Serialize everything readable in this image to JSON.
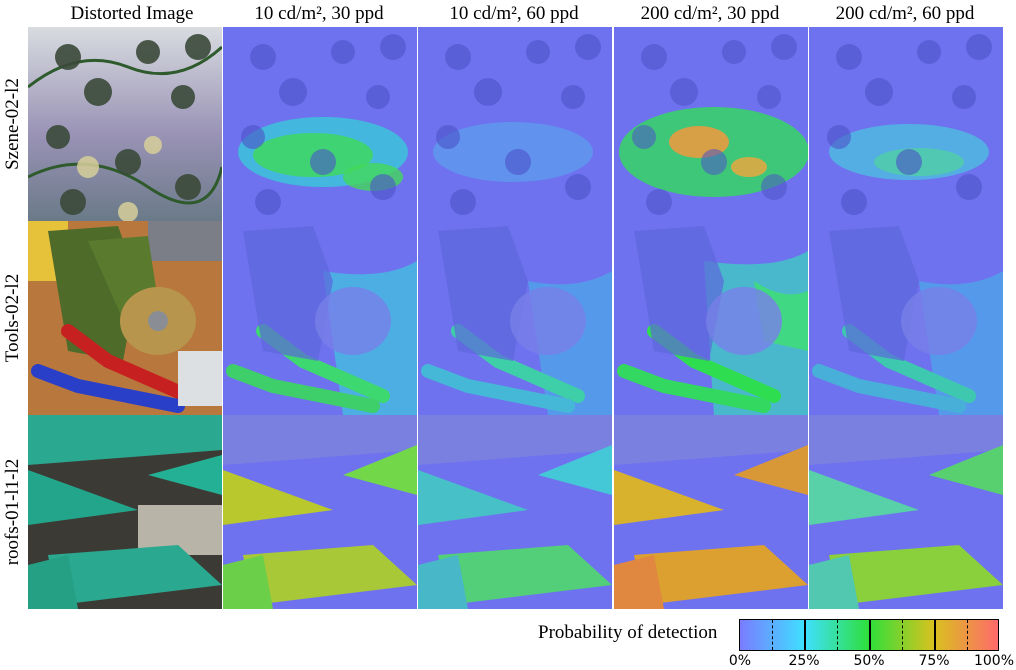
{
  "headers": {
    "original": "Distorted Image",
    "c1": "10 cd/m², 30 ppd",
    "c2": "10 cd/m², 60 ppd",
    "c3": "200 cd/m², 30 ppd",
    "c4": "200 cd/m², 60 ppd"
  },
  "rows": [
    {
      "label": "Szene-02-l2"
    },
    {
      "label": "Tools-02-l2"
    },
    {
      "label": "roofs-01-l1-l2"
    }
  ],
  "legend": {
    "title": "Probability of detection",
    "ticks": [
      "0%",
      "25%",
      "50%",
      "75%",
      "100%"
    ],
    "colors": [
      "#7a7cff",
      "#3ee0ff",
      "#2edf3a",
      "#d8c21e",
      "#ff6a6a"
    ]
  }
}
